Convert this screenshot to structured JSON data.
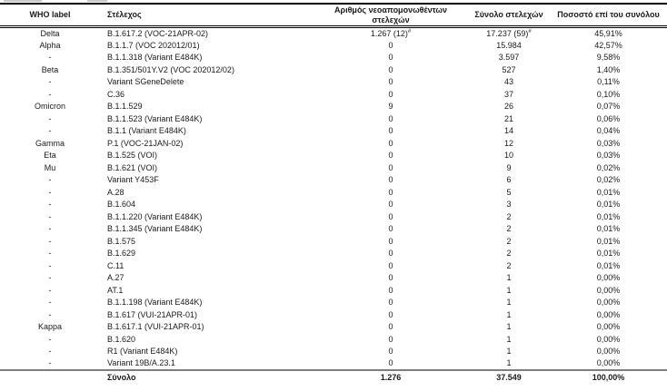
{
  "table": {
    "columns": [
      {
        "label": "WHO label"
      },
      {
        "label": "Στέλεχος"
      },
      {
        "label": "Αριθμός νεοαπομονωθέντων στελεχών"
      },
      {
        "label": "Σύνολο στελεχών"
      },
      {
        "label": "Ποσοστό επί του συνόλου"
      }
    ],
    "footnote_mark": "#",
    "rows": [
      {
        "who": "Delta",
        "strain": "B.1.617.2 (VOC-21APR-02)",
        "new_isolates": "1.267 (12)",
        "new_isolates_mark": "#",
        "total": "17.237 (59)",
        "total_mark": "#",
        "pct": "45,91%"
      },
      {
        "who": "Alpha",
        "strain": "B.1.1.7 (VOC 202012/01)",
        "new_isolates": "0",
        "total": "15.984",
        "pct": "42,57%"
      },
      {
        "who": "-",
        "strain": "B.1.1.318 (Variant E484K)",
        "new_isolates": "0",
        "total": "3.597",
        "pct": "9,58%"
      },
      {
        "who": "Beta",
        "strain": "B.1.351/501Y.V2 (VOC 202012/02)",
        "new_isolates": "0",
        "total": "527",
        "pct": "1,40%"
      },
      {
        "who": "-",
        "strain": "Variant SGeneDelete",
        "new_isolates": "0",
        "total": "43",
        "pct": "0,11%"
      },
      {
        "who": "-",
        "strain": "C.36",
        "new_isolates": "0",
        "total": "37",
        "pct": "0,10%"
      },
      {
        "who": "Omicron",
        "strain": "B.1.1.529",
        "new_isolates": "9",
        "total": "26",
        "pct": "0,07%"
      },
      {
        "who": "-",
        "strain": "B.1.1.523 (Variant E484K)",
        "new_isolates": "0",
        "total": "21",
        "pct": "0,06%"
      },
      {
        "who": "-",
        "strain": "B.1.1 (Variant E484K)",
        "new_isolates": "0",
        "total": "14",
        "pct": "0,04%"
      },
      {
        "who": "Gamma",
        "strain": "P.1 (VOC-21JAN-02)",
        "new_isolates": "0",
        "total": "12",
        "pct": "0,03%"
      },
      {
        "who": "Eta",
        "strain": "B.1.525 (VOI)",
        "new_isolates": "0",
        "total": "10",
        "pct": "0,03%"
      },
      {
        "who": "Mu",
        "strain": "B.1.621 (VOI)",
        "new_isolates": "0",
        "total": "9",
        "pct": "0,02%"
      },
      {
        "who": "-",
        "strain": "Variant Y453F",
        "new_isolates": "0",
        "total": "6",
        "pct": "0,02%"
      },
      {
        "who": "-",
        "strain": "A.28",
        "new_isolates": "0",
        "total": "5",
        "pct": "0,01%"
      },
      {
        "who": "-",
        "strain": "B.1.604",
        "new_isolates": "0",
        "total": "3",
        "pct": "0,01%"
      },
      {
        "who": "-",
        "strain": "B.1.1.220 (Variant E484K)",
        "new_isolates": "0",
        "total": "2",
        "pct": "0,01%"
      },
      {
        "who": "-",
        "strain": "B.1.1.345 (Variant E484K)",
        "new_isolates": "0",
        "total": "2",
        "pct": "0,01%"
      },
      {
        "who": "-",
        "strain": "B.1.575",
        "new_isolates": "0",
        "total": "2",
        "pct": "0,01%"
      },
      {
        "who": "-",
        "strain": "B.1.629",
        "new_isolates": "0",
        "total": "2",
        "pct": "0,01%"
      },
      {
        "who": "-",
        "strain": "C.11",
        "new_isolates": "0",
        "total": "2",
        "pct": "0,01%"
      },
      {
        "who": "-",
        "strain": "A.27",
        "new_isolates": "0",
        "total": "1",
        "pct": "0,00%"
      },
      {
        "who": "-",
        "strain": "AT.1",
        "new_isolates": "0",
        "total": "1",
        "pct": "0,00%"
      },
      {
        "who": "-",
        "strain": "B.1.1.198 (Variant E484K)",
        "new_isolates": "0",
        "total": "1",
        "pct": "0,00%"
      },
      {
        "who": "-",
        "strain": "B.1.617 (VUI-21APR-01)",
        "new_isolates": "0",
        "total": "1",
        "pct": "0,00%"
      },
      {
        "who": "Kappa",
        "strain": "B.1.617.1 (VUI-21APR-01)",
        "new_isolates": "0",
        "total": "1",
        "pct": "0,00%"
      },
      {
        "who": "-",
        "strain": "B.1.620",
        "new_isolates": "0",
        "total": "1",
        "pct": "0,00%"
      },
      {
        "who": "-",
        "strain": "R1 (Variant E484K)",
        "new_isolates": "0",
        "total": "1",
        "pct": "0,00%"
      },
      {
        "who": "-",
        "strain": "Variant 19B/A.23.1",
        "new_isolates": "0",
        "total": "1",
        "pct": "0,00%"
      }
    ],
    "footer": {
      "who": "",
      "label": "Σύνολο",
      "new_isolates": "1.276",
      "total": "37.549",
      "pct": "100,00%"
    }
  }
}
